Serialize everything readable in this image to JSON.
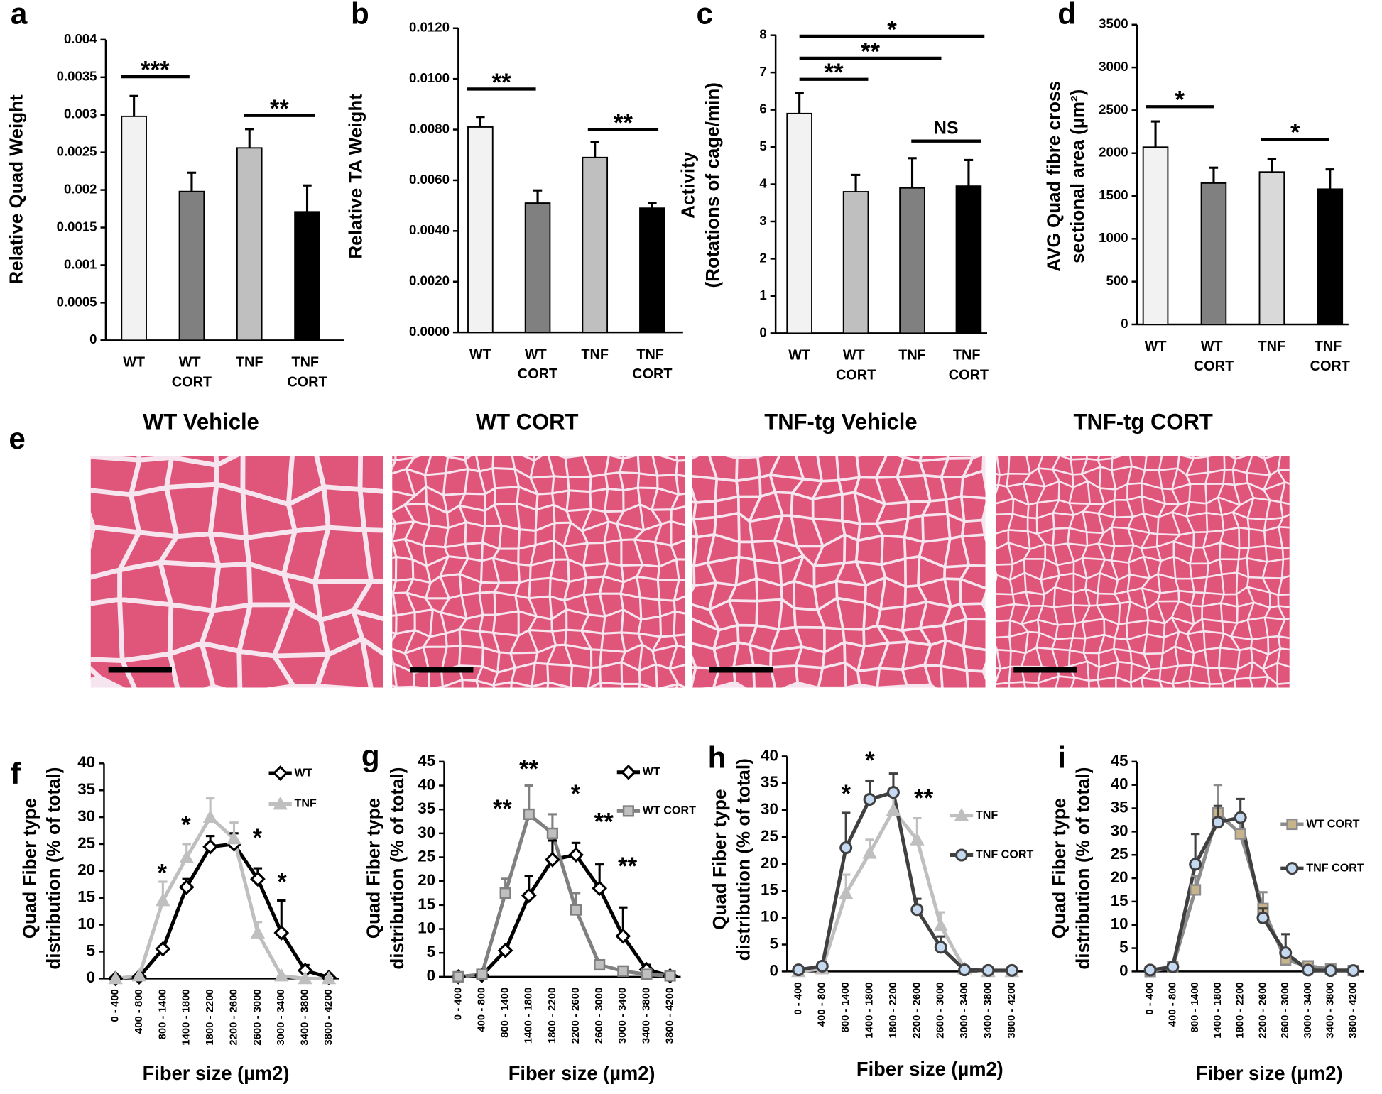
{
  "chart_data": [
    {
      "type": "bar",
      "label": "a",
      "y_label": [
        "Relative Quad Weight"
      ],
      "categories": [
        "WT",
        "WT CORT",
        "TNF",
        "TNF CORT"
      ],
      "values": [
        0.00298,
        0.00198,
        0.00256,
        0.00171
      ],
      "errors": [
        0.00027,
        0.00025,
        0.00025,
        0.00035
      ],
      "colors": [
        "#f2f2f2",
        "#808080",
        "#bfbfbf",
        "#000000"
      ],
      "ylim": [
        0,
        0.004
      ],
      "yticks": [
        0,
        0.0005,
        0.001,
        0.0015,
        0.002,
        0.0025,
        0.003,
        0.0035,
        0.004
      ],
      "annotations": [
        "***",
        "**"
      ]
    },
    {
      "type": "bar",
      "label": "b",
      "y_label": [
        "Relative TA Weight"
      ],
      "categories": [
        "WT",
        "WT CORT",
        "TNF",
        "TNF CORT"
      ],
      "values": [
        0.0081,
        0.0051,
        0.0069,
        0.0049
      ],
      "errors": [
        0.0004,
        0.0005,
        0.0006,
        0.0002
      ],
      "colors": [
        "#f2f2f2",
        "#808080",
        "#bfbfbf",
        "#000000"
      ],
      "ylim": [
        0,
        0.012
      ],
      "yticks": [
        {
          "value": 0,
          "label": "0.0000"
        },
        {
          "value": 0.002,
          "label": "0.0020"
        },
        {
          "value": 0.004,
          "label": "0.0040"
        },
        {
          "value": 0.006,
          "label": "0.0060"
        },
        {
          "value": 0.008,
          "label": "0.0080"
        },
        {
          "value": 0.01,
          "label": "0.0100"
        },
        {
          "value": 0.012,
          "label": "0.0120"
        }
      ],
      "annotations": [
        "**",
        "**"
      ]
    },
    {
      "type": "bar",
      "label": "c",
      "y_label": [
        "Activity",
        "(Rotations of cage/min)"
      ],
      "categories": [
        "WT",
        "WT CORT",
        "TNF",
        "TNF CORT"
      ],
      "values": [
        5.9,
        3.8,
        3.9,
        3.95
      ],
      "errors": [
        0.55,
        0.45,
        0.8,
        0.7
      ],
      "colors": [
        "#f2f2f2",
        "#bfbfbf",
        "#808080",
        "#000000"
      ],
      "ylim": [
        0,
        8
      ],
      "yticks": [
        0,
        1,
        2,
        3,
        4,
        5,
        6,
        7,
        8
      ],
      "annotations": [
        "*",
        "**",
        "**",
        "NS"
      ]
    },
    {
      "type": "bar",
      "label": "d",
      "y_label": [
        "AVG Quad  fibre cross",
        "sectional area (µm²)"
      ],
      "categories": [
        "WT",
        "WT CORT",
        "TNF",
        "TNF CORT"
      ],
      "values": [
        2070,
        1650,
        1780,
        1580
      ],
      "errors": [
        300,
        180,
        150,
        230
      ],
      "colors": [
        "#f2f2f2",
        "#808080",
        "#d9d9d9",
        "#000000"
      ],
      "ylim": [
        0,
        3500
      ],
      "yticks": [
        0,
        500,
        1000,
        1500,
        2000,
        2500,
        3000,
        3500
      ],
      "annotations": [
        "*",
        "*"
      ]
    },
    {
      "type": "line",
      "label": "f",
      "y_label": [
        "Quad Fiber type",
        "distribution  (% of total)"
      ],
      "x_label": "Fiber size (µm2)",
      "categories": [
        "0 - 400",
        "400 - 800",
        "800 - 1400",
        "1400 - 1800",
        "1800 - 2200",
        "2200 - 2600",
        "2600 - 3000",
        "3000 - 3400",
        "3400 - 3800",
        "3800 - 4200"
      ],
      "series": [
        {
          "name": "WT",
          "color": "#000000",
          "marker": "diamond",
          "marker_fill": "#ffffff",
          "values": [
            0,
            0.3,
            5.5,
            17,
            24.5,
            25,
            18.5,
            8.5,
            1.5,
            0.2
          ],
          "errors": [
            0,
            0,
            0.5,
            1.5,
            2,
            2,
            2,
            6,
            1,
            0
          ]
        },
        {
          "name": "TNF",
          "color": "#bfbfbf",
          "marker": "triangle",
          "marker_fill": "#bfbfbf",
          "values": [
            0,
            0.5,
            14.5,
            22.5,
            30,
            26,
            8.5,
            0.5,
            0,
            0
          ],
          "errors": [
            0,
            0,
            3.5,
            2.5,
            3.5,
            3,
            2,
            0,
            0,
            0
          ]
        }
      ],
      "ylim": [
        0,
        40
      ],
      "yticks": [
        0,
        5,
        10,
        15,
        20,
        25,
        30,
        35,
        40
      ],
      "legend": "upper right",
      "annotations": [
        "*",
        "*",
        "*",
        "*"
      ]
    },
    {
      "type": "line",
      "label": "g",
      "y_label": [
        "Quad Fiber type",
        "distribution  (% of total)"
      ],
      "x_label": "Fiber size (µm2)",
      "categories": [
        "0 - 400",
        "400 - 800",
        "800 - 1400",
        "1400 - 1800",
        "1800 - 2200",
        "2200 - 2600",
        "2600 - 3000",
        "3000 - 3400",
        "3400 - 3800",
        "3800 - 4200"
      ],
      "series": [
        {
          "name": "WT",
          "color": "#000000",
          "marker": "diamond",
          "marker_fill": "#ffffff",
          "values": [
            0,
            0.3,
            5.5,
            17,
            24.5,
            25.5,
            18.5,
            8.5,
            1.5,
            0.2
          ],
          "errors": [
            0,
            0,
            0.5,
            4,
            4,
            2.5,
            5,
            6,
            1,
            0
          ]
        },
        {
          "name": "WT CORT",
          "color": "#808080",
          "marker": "square",
          "marker_fill": "#bfbfbf",
          "values": [
            0,
            0.5,
            17.5,
            34,
            30,
            14,
            2.5,
            1.2,
            0.5,
            0.2
          ],
          "errors": [
            0,
            0,
            3,
            6,
            4,
            3.5,
            0.5,
            0.5,
            0,
            0
          ]
        }
      ],
      "ylim": [
        0,
        45
      ],
      "yticks": [
        0,
        5,
        10,
        15,
        20,
        25,
        30,
        35,
        40,
        45
      ],
      "legend": "upper right",
      "annotations": [
        "**",
        "**",
        "*",
        "**",
        "**"
      ]
    },
    {
      "type": "line",
      "label": "h",
      "y_label": [
        "Quad Fiber type",
        "distribution  (% of total)"
      ],
      "x_label": "Fiber size (µm2)",
      "categories": [
        "0 - 400",
        "400 - 800",
        "800 - 1400",
        "1400 - 1800",
        "1800 - 2200",
        "2200 - 2600",
        "2600 - 3000",
        "3000 - 3400",
        "3400 - 3800",
        "3800 - 4200"
      ],
      "series": [
        {
          "name": "TNF",
          "color": "#bfbfbf",
          "marker": "triangle",
          "marker_fill": "#bfbfbf",
          "values": [
            0,
            0.5,
            14.5,
            22,
            30,
            24.5,
            8.5,
            0.5,
            0,
            0
          ],
          "errors": [
            0,
            0,
            3.5,
            2.5,
            3.5,
            4,
            2.5,
            0,
            0,
            0
          ]
        },
        {
          "name": "TNF CORT",
          "color": "#404040",
          "marker": "circle",
          "marker_fill": "#c5d9f1",
          "values": [
            0.3,
            1,
            23,
            32,
            33.3,
            11.5,
            4.5,
            0.3,
            0.2,
            0.2
          ],
          "errors": [
            0,
            0,
            6.5,
            3.5,
            3.5,
            2,
            2,
            0,
            0,
            0
          ]
        }
      ],
      "ylim": [
        0,
        40
      ],
      "yticks": [
        0,
        5,
        10,
        15,
        20,
        25,
        30,
        35,
        40
      ],
      "legend": "right",
      "annotations": [
        "*",
        "*",
        "**"
      ]
    },
    {
      "type": "line",
      "label": "i",
      "y_label": [
        "Quad Fiber type",
        "distribution  (% of total)"
      ],
      "x_label": "Fiber size (µm2)",
      "categories": [
        "0 - 400",
        "400 - 800",
        "800 - 1400",
        "1400 - 1800",
        "1800 - 2200",
        "2200 - 2600",
        "2600 - 3000",
        "3000 - 3400",
        "3400 - 3800",
        "3800 - 4200"
      ],
      "series": [
        {
          "name": "WT CORT",
          "color": "#8c8c8c",
          "marker": "square",
          "marker_fill": "#c8b48c",
          "values": [
            0,
            1,
            17.5,
            34,
            29.5,
            13.5,
            2.5,
            1.2,
            0.5,
            0.2
          ],
          "errors": [
            0,
            0,
            3,
            6,
            4,
            3.5,
            0.5,
            0.5,
            0,
            0
          ]
        },
        {
          "name": "TNF CORT",
          "color": "#404040",
          "marker": "circle",
          "marker_fill": "#c5d9f1",
          "values": [
            0.3,
            1,
            23,
            32,
            33,
            11.5,
            4,
            0.3,
            0.2,
            0.2
          ],
          "errors": [
            0,
            0,
            6.5,
            3.5,
            4,
            2,
            4,
            0,
            0,
            0
          ]
        }
      ],
      "ylim": [
        0,
        45
      ],
      "yticks": [
        0,
        5,
        10,
        15,
        20,
        25,
        30,
        35,
        40,
        45
      ],
      "legend": "right",
      "annotations": []
    }
  ],
  "histology": {
    "label": "e",
    "titles": [
      "WT Vehicle",
      "WT CORT",
      "TNF-tg Vehicle",
      "TNF-tg CORT"
    ]
  }
}
